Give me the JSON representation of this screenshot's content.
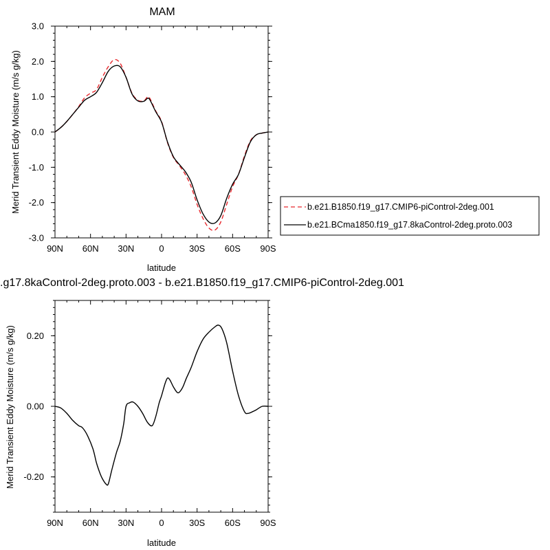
{
  "chart_data": [
    {
      "type": "line",
      "title": "MAM",
      "xlabel": "latitude",
      "ylabel": "Merid Transient Eddy Moisture (m/s g/kg)",
      "xlim": [
        90,
        -90
      ],
      "ylim": [
        -3.0,
        3.0
      ],
      "x_ticks": [
        90,
        60,
        30,
        0,
        -30,
        -60,
        -90
      ],
      "x_tick_labels": [
        "90N",
        "60N",
        "30N",
        "0",
        "30S",
        "60S",
        "90S"
      ],
      "y_ticks": [
        3.0,
        2.0,
        1.0,
        0.0,
        -1.0,
        -2.0,
        -3.0
      ],
      "y_tick_labels": [
        "3.0",
        "2.0",
        "1.0",
        "0.0",
        "-1.0",
        "-2.0",
        "-3.0"
      ],
      "legend_position": "right",
      "series": [
        {
          "name": "b.e21.B1850.f19_g17.CMIP6-piControl-2deg.001",
          "color": "#e8262b",
          "dash": "dashed",
          "x": [
            90,
            85,
            80,
            75,
            70,
            65,
            60,
            55,
            50,
            45,
            40,
            35,
            30,
            25,
            20,
            15,
            12,
            10,
            5,
            0,
            -5,
            -10,
            -15,
            -20,
            -25,
            -30,
            -35,
            -40,
            -45,
            -50,
            -55,
            -60,
            -65,
            -70,
            -75,
            -80,
            -85,
            -90
          ],
          "y": [
            0.0,
            0.13,
            0.3,
            0.5,
            0.72,
            0.97,
            1.1,
            1.2,
            1.55,
            1.85,
            2.05,
            1.95,
            1.55,
            1.1,
            0.9,
            0.88,
            0.99,
            0.96,
            0.6,
            0.3,
            -0.3,
            -0.72,
            -0.95,
            -1.2,
            -1.55,
            -2.05,
            -2.45,
            -2.72,
            -2.78,
            -2.55,
            -2.05,
            -1.55,
            -1.2,
            -0.68,
            -0.25,
            -0.08,
            -0.03,
            0.0
          ]
        },
        {
          "name": "b.e21.BCma1850.f19_g17.8kaControl-2deg.proto.003",
          "color": "#000000",
          "dash": "solid",
          "x": [
            90,
            85,
            80,
            75,
            70,
            65,
            60,
            55,
            50,
            45,
            40,
            35,
            30,
            25,
            20,
            15,
            12,
            10,
            5,
            0,
            -5,
            -10,
            -15,
            -20,
            -25,
            -30,
            -35,
            -40,
            -45,
            -50,
            -55,
            -60,
            -65,
            -70,
            -75,
            -80,
            -85,
            -90
          ],
          "y": [
            0.0,
            0.13,
            0.3,
            0.5,
            0.7,
            0.9,
            1.0,
            1.12,
            1.4,
            1.72,
            1.87,
            1.85,
            1.55,
            1.08,
            0.88,
            0.87,
            0.95,
            0.92,
            0.58,
            0.28,
            -0.28,
            -0.7,
            -0.92,
            -1.12,
            -1.42,
            -1.92,
            -2.32,
            -2.55,
            -2.58,
            -2.37,
            -1.88,
            -1.48,
            -1.2,
            -0.72,
            -0.28,
            -0.08,
            -0.03,
            0.0
          ]
        }
      ]
    },
    {
      "type": "line",
      "title": ".g17.8kaControl-2deg.proto.003 - b.e21.B1850.f19_g17.CMIP6-piControl-2deg.001",
      "xlabel": "latitude",
      "ylabel": "Merid Transient Eddy Moisture (m/s g/kg)",
      "xlim": [
        90,
        -90
      ],
      "ylim": [
        -0.3,
        0.3
      ],
      "x_ticks": [
        90,
        60,
        30,
        0,
        -30,
        -60,
        -90
      ],
      "x_tick_labels": [
        "90N",
        "60N",
        "30N",
        "0",
        "30S",
        "60S",
        "90S"
      ],
      "y_ticks": [
        0.2,
        0.0,
        -0.2
      ],
      "y_tick_labels": [
        "0.20",
        "0.00",
        "-0.20"
      ],
      "series": [
        {
          "color": "#000000",
          "dash": "solid",
          "x": [
            90,
            85,
            80,
            75,
            70,
            67,
            63,
            58,
            55,
            52,
            50,
            47,
            45,
            42,
            38,
            35,
            32,
            30,
            27,
            24,
            20,
            16,
            12,
            8,
            5,
            2,
            0,
            -3,
            -5,
            -7,
            -10,
            -13,
            -15,
            -18,
            -21,
            -25,
            -30,
            -35,
            -40,
            -45,
            -48,
            -51,
            -55,
            -60,
            -65,
            -70,
            -73,
            -77,
            -80,
            -85,
            -90
          ],
          "y": [
            0.0,
            -0.005,
            -0.02,
            -0.04,
            -0.055,
            -0.06,
            -0.08,
            -0.12,
            -0.16,
            -0.19,
            -0.205,
            -0.22,
            -0.22,
            -0.18,
            -0.13,
            -0.1,
            -0.05,
            0.0,
            0.01,
            0.012,
            0.0,
            -0.02,
            -0.045,
            -0.055,
            -0.03,
            0.01,
            0.03,
            0.065,
            0.08,
            0.075,
            0.055,
            0.04,
            0.04,
            0.055,
            0.08,
            0.11,
            0.155,
            0.19,
            0.21,
            0.225,
            0.23,
            0.22,
            0.18,
            0.1,
            0.03,
            -0.015,
            -0.02,
            -0.015,
            -0.01,
            0.0,
            0.0
          ]
        }
      ]
    }
  ]
}
